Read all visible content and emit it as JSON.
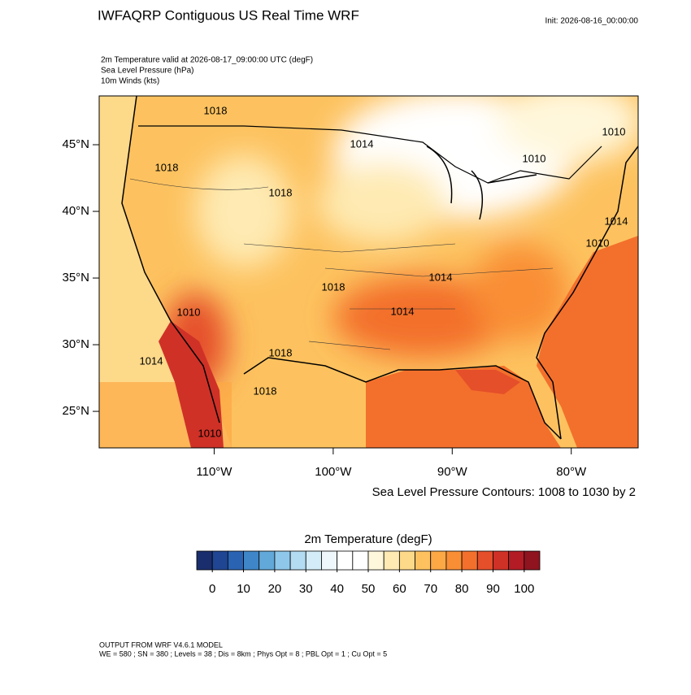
{
  "header": {
    "title": "IWFAQRP Contiguous US Real Time WRF",
    "init": "Init: 2026-08-16_00:00:00",
    "fields": [
      "2m Temperature valid at 2026-08-17_09:00:00 UTC   (degF)",
      "Sea Level Pressure   (hPa)",
      "10m Winds   (kts)"
    ]
  },
  "map": {
    "xlim": [
      -119.66,
      -74.38
    ],
    "ylim": [
      22.26,
      48.66
    ],
    "xticks": [
      {
        "value": -110,
        "label": "110°W"
      },
      {
        "value": -100,
        "label": "100°W"
      },
      {
        "value": -90,
        "label": "90°W"
      },
      {
        "value": -80,
        "label": "80°W"
      }
    ],
    "yticks": [
      {
        "value": 25,
        "label": "25°N"
      },
      {
        "value": 30,
        "label": "30°N"
      },
      {
        "value": 35,
        "label": "35°N"
      },
      {
        "value": 40,
        "label": "40°N"
      },
      {
        "value": 45,
        "label": "45°N"
      }
    ],
    "contour_labels": [
      "1018",
      "1014",
      "1010",
      "1010",
      "1014",
      "1010",
      "1018",
      "1014",
      "1014",
      "1018",
      "1014",
      "1010",
      "1018",
      "1010",
      "1018",
      "1018"
    ],
    "contour_note": "Sea Level Pressure Contours: 1008 to 1030 by 2"
  },
  "colorbar": {
    "title": "2m Temperature  (degF)",
    "range": [
      -5,
      105
    ],
    "colors": [
      "#1a2e6e",
      "#1f4593",
      "#2b63b3",
      "#3e86c7",
      "#62a8d9",
      "#8ec7ea",
      "#b3dcf3",
      "#d3ecf8",
      "#eef7fb",
      "#ffffff",
      "#ffffff",
      "#fff7dc",
      "#feeab2",
      "#fdd98a",
      "#fdc25f",
      "#fca845",
      "#f98e35",
      "#f3702c",
      "#e54f2a",
      "#cf3127",
      "#b31c24",
      "#8f1420"
    ],
    "ticks": [
      0,
      10,
      20,
      30,
      40,
      50,
      60,
      70,
      80,
      90,
      100
    ]
  },
  "footer": [
    "OUTPUT FROM WRF V4.6.1 MODEL",
    "WE = 580 ; SN = 380 ; Levels = 38 ; Dis = 8km ; Phys Opt = 8 ; PBL Opt = 1 ; Cu Opt = 5"
  ]
}
